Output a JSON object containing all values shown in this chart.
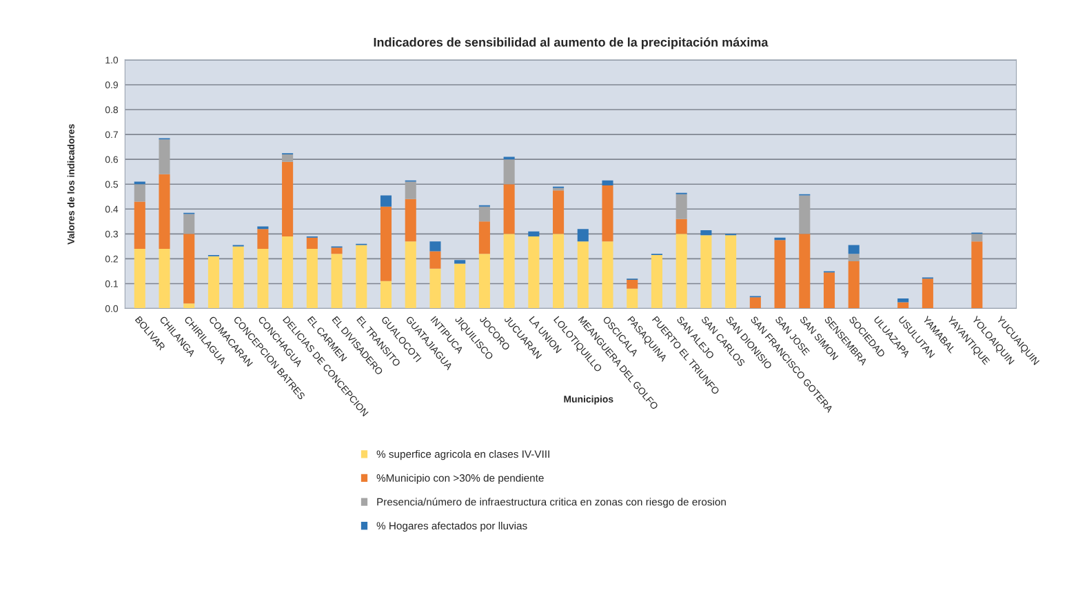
{
  "chart_data": {
    "type": "bar",
    "stacked": true,
    "title": "Indicadores de sensibilidad al aumento de la precipitación máxima",
    "xlabel": "Municipios",
    "ylabel": "Valores de los indicadores",
    "categories": [
      "BOLIVAR",
      "CHILANGA",
      "CHIRILAGUA",
      "COMACARAN",
      "CONCEPCION BATRES",
      "CONCHAGUA",
      "DELICIAS DE CONCEPCION",
      "EL CARMEN",
      "EL DIVISADERO",
      "EL TRANSITO",
      "GUALOCOTI",
      "GUATAJIAGUA",
      "INTIPUCA",
      "JIQUILISCO",
      "JOCORO",
      "JUCUARAN",
      "LA UNION",
      "LOLOTIQUILLO",
      "MEANGUERA DEL GOLFO",
      "OSCICALA",
      "PASAQUINA",
      "PUERTO EL TRIUNFO",
      "SAN ALEJO",
      "SAN CARLOS",
      "SAN DIONISIO",
      "SAN FRANCISCO GOTERA",
      "SAN JOSE",
      "SAN SIMON",
      "SENSEMBRA",
      "SOCIEDAD",
      "ULUAZAPA",
      "USULUTAN",
      "YAMABAL",
      "YAYANTIQUE",
      "YOLOAIQUIN",
      "YUCUAIQUIN"
    ],
    "series": [
      {
        "name": "% superfice agricola en clases IV-VIII",
        "color": "#ffd966",
        "values": [
          0.24,
          0.24,
          0.02,
          0.21,
          0.25,
          0.24,
          0.29,
          0.24,
          0.22,
          0.255,
          0.11,
          0.27,
          0.16,
          0.18,
          0.22,
          0.3,
          0.29,
          0.3,
          0.27,
          0.27,
          0.08,
          0.215,
          0.3,
          0.295,
          0.295,
          0,
          0,
          0,
          0,
          0,
          0,
          0,
          0,
          0,
          0,
          0
        ]
      },
      {
        "name": "%Municipio con >30% de pendiente",
        "color": "#ed7d31",
        "values": [
          0.19,
          0.3,
          0.28,
          0,
          0,
          0.08,
          0.3,
          0.045,
          0.025,
          0,
          0.3,
          0.17,
          0.07,
          0,
          0.13,
          0.2,
          0,
          0.175,
          0,
          0.225,
          0.035,
          0,
          0.06,
          0,
          0,
          0.045,
          0.275,
          0.3,
          0.145,
          0.19,
          0,
          0.025,
          0.12,
          0,
          0.27,
          0
        ]
      },
      {
        "name": "Presencia/número de infraestructura critica en zonas con riesgo de erosion",
        "color": "#a5a5a5",
        "values": [
          0.07,
          0.14,
          0.08,
          0,
          0,
          0,
          0.03,
          0,
          0,
          0,
          0,
          0.07,
          0,
          0,
          0.06,
          0.1,
          0,
          0.01,
          0,
          0,
          0,
          0,
          0.1,
          0,
          0,
          0,
          0,
          0.155,
          0,
          0.03,
          0,
          0,
          0,
          0,
          0.03,
          0
        ]
      },
      {
        "name": "% Hogares afectados por lluvias",
        "color": "#2e75b6",
        "values": [
          0.01,
          0.005,
          0.005,
          0.005,
          0.005,
          0.01,
          0.005,
          0.005,
          0.005,
          0.005,
          0.045,
          0.005,
          0.04,
          0.015,
          0.005,
          0.01,
          0.02,
          0.005,
          0.05,
          0.02,
          0.005,
          0.005,
          0.005,
          0.02,
          0.005,
          0.005,
          0.01,
          0.005,
          0.005,
          0.035,
          0,
          0.015,
          0.005,
          0,
          0.005,
          0
        ]
      }
    ],
    "ylim": [
      0,
      1.0
    ],
    "yticks": [
      {
        "value": 0,
        "label": "0.0"
      },
      {
        "value": 0.1,
        "label": "0.1"
      },
      {
        "value": 0.2,
        "label": "0.2"
      },
      {
        "value": 0.3,
        "label": "0.3"
      },
      {
        "value": 0.4,
        "label": "0.4"
      },
      {
        "value": 0.5,
        "label": "0.5"
      },
      {
        "value": 0.6,
        "label": "0.6"
      },
      {
        "value": 0.7,
        "label": "0.7"
      },
      {
        "value": 0.8,
        "label": "0.8"
      },
      {
        "value": 0.9,
        "label": "0.9"
      },
      {
        "value": 1.0,
        "label": "1.0"
      }
    ],
    "grid": "y",
    "legend": "bottom"
  }
}
